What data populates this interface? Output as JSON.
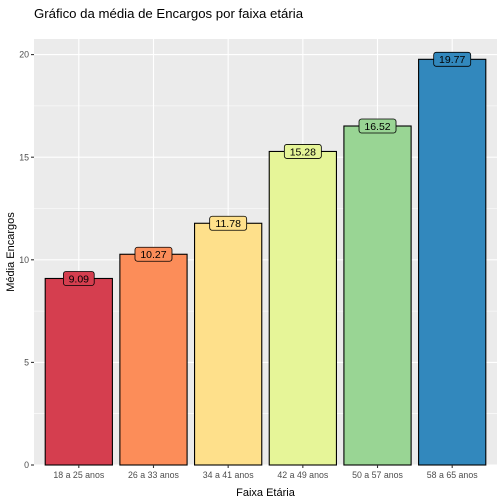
{
  "chart_data": {
    "type": "bar",
    "title": "Gráfico da média de Encargos por faixa etária",
    "xlabel": "Faixa Etária",
    "ylabel": "Média Encargos",
    "categories": [
      "18 a 25 anos",
      "26 a 33 anos",
      "34 a 41 anos",
      "42 a 49 anos",
      "50 a 57 anos",
      "58 a 65 anos"
    ],
    "values": [
      9.09,
      10.27,
      11.78,
      15.28,
      16.52,
      19.77
    ],
    "labels": [
      "9.09",
      "10.27",
      "11.78",
      "15.28",
      "16.52",
      "19.77"
    ],
    "colors": [
      "#D53E4F",
      "#FC8D59",
      "#FEE08B",
      "#E6F598",
      "#99D594",
      "#3288BD"
    ],
    "ylim": [
      0,
      20.76
    ],
    "yticks": [
      0,
      5,
      10,
      15,
      20
    ],
    "ytick_labels": [
      "0",
      "5",
      "10",
      "15",
      "20"
    ],
    "grid": true,
    "panel_background": "#EBEBEB",
    "grid_color": "#FFFFFF",
    "legend": "none"
  }
}
